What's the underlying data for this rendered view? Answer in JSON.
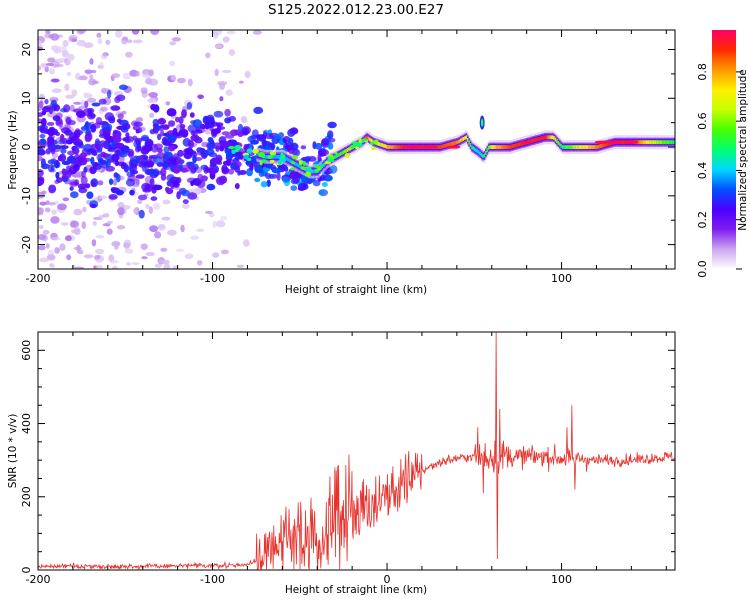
{
  "chart_data": [
    {
      "type": "heatmap",
      "title": "S125.2022.012.23.00.E27",
      "xlabel": "Height of straight line (km)",
      "ylabel": "Frequency (Hz)",
      "xlim": [
        -200,
        165
      ],
      "ylim": [
        -25,
        24
      ],
      "xticks": [
        -200,
        -100,
        0,
        100
      ],
      "yticks": [
        -20,
        -10,
        0,
        10,
        20
      ],
      "colorbar": {
        "label": "Normalized spectral amplitude",
        "range": [
          0.0,
          0.97
        ],
        "ticks": [
          "0.0",
          "0.2",
          "0.4",
          "0.6",
          "0.8"
        ],
        "ticks_values": [
          0.0,
          0.2,
          0.4,
          0.6,
          0.8
        ],
        "colors": [
          "#ffffff",
          "#c9a5ef",
          "#7f1cf0",
          "#4b00ff",
          "#0050ff",
          "#00d8ff",
          "#00ff70",
          "#48ff00",
          "#c8ff00",
          "#ffee00",
          "#ff9900",
          "#ff2a00",
          "#ff0066"
        ]
      },
      "ridge": {
        "x": [
          -200,
          -180,
          -160,
          -140,
          -120,
          -100,
          -90,
          -80,
          -70,
          -60,
          -50,
          -45,
          -40,
          -35,
          -30,
          -25,
          -20,
          -15,
          -12,
          -8,
          0,
          10,
          20,
          30,
          40,
          45,
          48,
          52,
          55,
          58,
          62,
          70,
          80,
          90,
          95,
          100,
          110,
          120,
          130,
          140,
          150,
          165
        ],
        "y": [
          1,
          0,
          0,
          -2,
          -1,
          0,
          0,
          -1,
          -2,
          -2,
          -4,
          -5,
          -5,
          -3,
          -2,
          -1,
          0,
          1,
          2,
          1,
          0,
          0,
          0,
          0,
          1,
          2,
          0,
          -1,
          -2,
          0,
          0,
          0,
          1,
          2,
          2,
          0,
          0,
          0,
          1,
          1,
          1,
          1
        ],
        "intensity": [
          0.2,
          0.2,
          0.2,
          0.2,
          0.2,
          0.25,
          0.3,
          0.35,
          0.4,
          0.4,
          0.4,
          0.42,
          0.4,
          0.45,
          0.5,
          0.6,
          0.7,
          0.8,
          0.9,
          0.6,
          0.8,
          0.95,
          0.95,
          0.9,
          0.85,
          0.7,
          0.5,
          0.4,
          0.5,
          0.6,
          0.8,
          0.9,
          0.92,
          0.95,
          0.7,
          0.5,
          0.7,
          0.85,
          0.95,
          0.95,
          0.7,
          0.5
        ]
      }
    },
    {
      "type": "line",
      "title": "",
      "xlabel": "Height of straight line (km)",
      "ylabel": "SNR (10 * v/v)",
      "xlim": [
        -200,
        165
      ],
      "ylim": [
        0,
        650
      ],
      "xticks": [
        -200,
        -100,
        0,
        100
      ],
      "yticks": [
        0,
        200,
        400,
        600
      ],
      "color": "#e8322c",
      "trend": {
        "x": [
          -200,
          -140,
          -100,
          -80,
          -70,
          -60,
          -50,
          -40,
          -30,
          -20,
          -10,
          0,
          10,
          20,
          30,
          40,
          50,
          60,
          70,
          80,
          90,
          100,
          110,
          120,
          130,
          140,
          150,
          165
        ],
        "y": [
          10,
          10,
          12,
          14,
          40,
          80,
          90,
          100,
          130,
          150,
          180,
          210,
          240,
          270,
          295,
          305,
          310,
          310,
          310,
          310,
          310,
          305,
          305,
          300,
          300,
          300,
          305,
          310
        ]
      },
      "spikes": [
        {
          "x": 52,
          "y": 390
        },
        {
          "x": 55,
          "y": 210
        },
        {
          "x": 62.5,
          "y": 650
        },
        {
          "x": 63.2,
          "y": 30
        },
        {
          "x": 64.5,
          "y": 440
        },
        {
          "x": 103,
          "y": 390
        },
        {
          "x": 106,
          "y": 450
        },
        {
          "x": 107.5,
          "y": 220
        },
        {
          "x": -30,
          "y": 280
        },
        {
          "x": -20,
          "y": 270
        },
        {
          "x": -40,
          "y": 30
        }
      ]
    }
  ]
}
